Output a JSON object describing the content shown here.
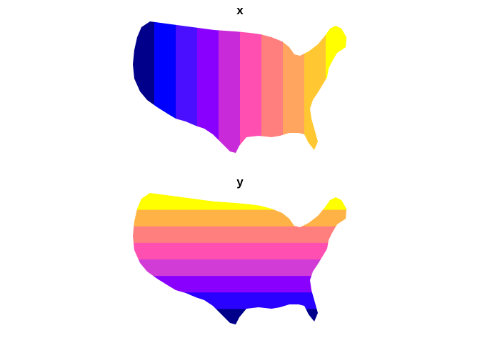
{
  "panels": [
    {
      "title": "x",
      "orientation": "vertical",
      "colors": [
        "#00008B",
        "#0000FF",
        "#4B0FFF",
        "#8A00FF",
        "#C82AD9",
        "#FF4FB0",
        "#FF7F7F",
        "#FFA55F",
        "#FFC832",
        "#FFFF00"
      ]
    },
    {
      "title": "y",
      "orientation": "horizontal",
      "colors": [
        "#00008B",
        "#2A00FF",
        "#8A00FF",
        "#D23CD6",
        "#FF4FB0",
        "#FF7F7F",
        "#FFB347",
        "#FFFF00"
      ]
    }
  ]
}
